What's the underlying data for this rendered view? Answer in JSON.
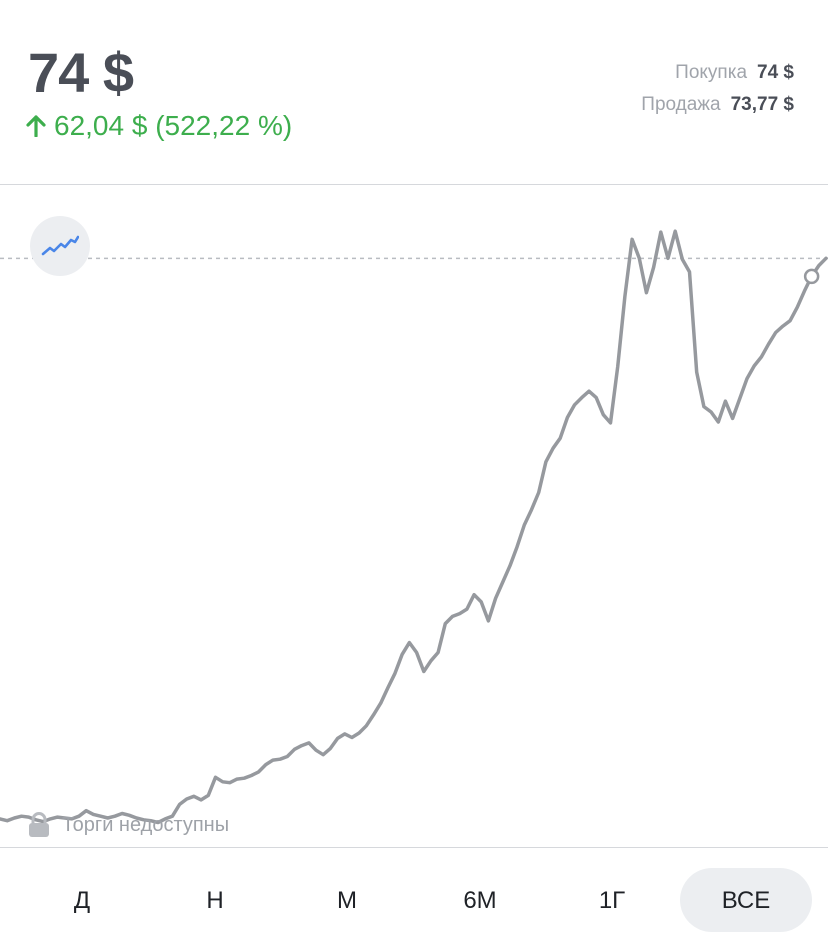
{
  "header": {
    "price": "74 $",
    "change": "62,04 $ (522,22 %)",
    "change_color": "#3dae4d",
    "quotes": [
      {
        "label": "Покупка",
        "value": "74 $"
      },
      {
        "label": "Продажа",
        "value": "73,77 $"
      }
    ]
  },
  "chart_data": {
    "type": "line",
    "series": [
      {
        "values": [
          12.0,
          11.8,
          12.1,
          12.3,
          12.2,
          11.9,
          11.7,
          12.0,
          12.2,
          12.1,
          12.0,
          12.3,
          12.9,
          12.5,
          12.3,
          12.1,
          12.3,
          12.6,
          12.4,
          12.1,
          11.9,
          11.8,
          11.6,
          12.0,
          12.3,
          13.6,
          14.2,
          14.5,
          14.1,
          14.6,
          16.6,
          16.1,
          16.0,
          16.4,
          16.5,
          16.8,
          17.2,
          18.0,
          18.5,
          18.6,
          18.9,
          19.7,
          20.1,
          20.4,
          19.6,
          19.1,
          19.8,
          20.9,
          21.4,
          21.0,
          21.5,
          22.3,
          23.5,
          24.8,
          26.5,
          28.1,
          30.2,
          31.5,
          30.4,
          28.3,
          29.5,
          30.4,
          33.6,
          34.4,
          34.7,
          35.2,
          36.8,
          36.0,
          33.9,
          36.4,
          38.2,
          40.0,
          42.1,
          44.5,
          46.2,
          48.1,
          51.5,
          53.0,
          54.1,
          56.4,
          57.8,
          58.6,
          59.3,
          58.6,
          56.7,
          55.8,
          62.0,
          69.8,
          76.1,
          74.0,
          70.2,
          73.0,
          76.9,
          74.0,
          77.0,
          73.9,
          72.5,
          61.4,
          57.6,
          57.0,
          55.9,
          58.2,
          56.3,
          58.5,
          60.7,
          62.1,
          63.1,
          64.5,
          65.8,
          66.5,
          67.1,
          68.6,
          70.4,
          72.0,
          73.2,
          74.0
        ],
        "color": "#96999e"
      }
    ],
    "reference": 74.0,
    "ylim": [
      9.0,
      82.0
    ]
  },
  "status": {
    "text": "Торги недоступны"
  },
  "periods": {
    "items": [
      "Д",
      "Н",
      "М",
      "6М",
      "1Г",
      "ВСЕ"
    ],
    "active_index": 5
  }
}
